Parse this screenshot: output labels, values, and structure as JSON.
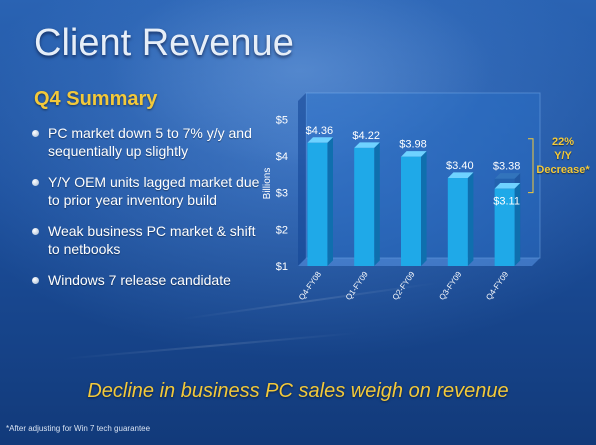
{
  "slide": {
    "title": "Client Revenue",
    "subtitle": "Q4 Summary",
    "bullets": [
      "PC market down 5 to 7% y/y and sequentially up slightly",
      "Y/Y OEM units lagged market due to prior year inventory build",
      "Weak business PC market & shift to netbooks",
      "Windows 7 release candidate"
    ],
    "tagline": "Decline in business PC sales  weigh on revenue",
    "footnote": "*After adjusting for Win 7 tech guarantee"
  },
  "callout": {
    "line1": "22%",
    "line2": "Y/Y",
    "line3": "Decrease*"
  },
  "colors": {
    "bar_front": "#1fa9e8",
    "bar_top": "#6fd2ff",
    "bar_side": "#0f6fae",
    "accent_yellow": "#f3c93a"
  },
  "chart_data": {
    "type": "bar",
    "categories": [
      "Q4-FY08",
      "Q1-FY09",
      "Q2-FY09",
      "Q3-FY09",
      "Q4-FY09"
    ],
    "values": [
      4.36,
      4.22,
      3.98,
      3.4,
      3.11
    ],
    "value_labels": [
      "$4.36",
      "$4.22",
      "$3.98",
      "$3.40",
      "$3.11"
    ],
    "ghost_value": 3.38,
    "ghost_label": "$3.38",
    "ylabel": "Billions",
    "yticks": [
      1,
      2,
      3,
      4,
      5
    ],
    "ytick_labels": [
      "$1",
      "$2",
      "$3",
      "$4",
      "$5"
    ],
    "ylim": [
      1,
      5.5
    ],
    "grid": false,
    "style": "3d"
  }
}
